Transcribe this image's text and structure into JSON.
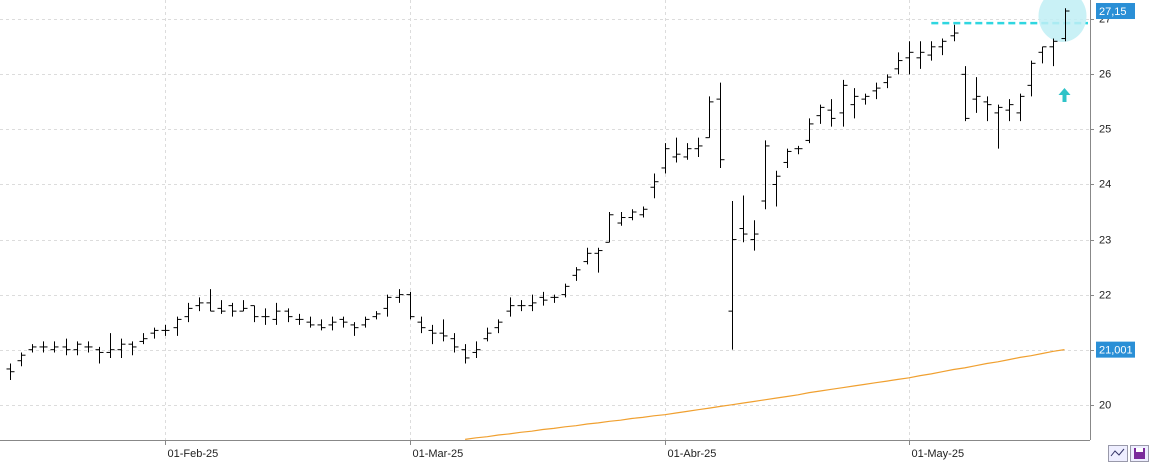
{
  "chart_data": {
    "type": "ohlc",
    "color": "#000000",
    "categories": [
      null,
      null,
      null,
      null,
      null,
      null,
      null,
      null,
      null,
      null,
      null,
      null,
      null,
      null,
      "01-Feb-25",
      null,
      null,
      null,
      null,
      null,
      null,
      null,
      null,
      null,
      null,
      null,
      null,
      null,
      null,
      null,
      null,
      null,
      null,
      null,
      null,
      null,
      "01-Mar-25",
      null,
      null,
      null,
      null,
      null,
      null,
      null,
      null,
      null,
      null,
      null,
      null,
      null,
      null,
      null,
      null,
      null,
      null,
      null,
      null,
      null,
      null,
      "01-Abr-25",
      null,
      null,
      null,
      null,
      null,
      null,
      null,
      null,
      null,
      null,
      null,
      null,
      null,
      null,
      null,
      null,
      null,
      null,
      null,
      null,
      null,
      "01-May-25",
      null,
      null,
      null,
      null,
      null,
      null,
      null,
      null,
      null,
      null,
      null,
      null,
      null,
      null
    ],
    "open": [
      20.65,
      20.8,
      21.0,
      21.05,
      21.0,
      21.05,
      21.0,
      21.05,
      21.0,
      20.95,
      21.0,
      21.1,
      21.15,
      21.3,
      21.35,
      21.4,
      21.6,
      21.8,
      21.85,
      21.75,
      21.8,
      21.7,
      21.8,
      21.6,
      21.55,
      21.7,
      21.55,
      21.5,
      21.45,
      21.45,
      21.55,
      21.45,
      21.45,
      21.6,
      21.75,
      21.95,
      22.0,
      21.5,
      21.35,
      21.3,
      21.2,
      21.0,
      20.95,
      21.2,
      21.4,
      21.7,
      21.8,
      21.8,
      21.95,
      21.95,
      22.0,
      22.35,
      22.6,
      22.75,
      22.95,
      23.3,
      23.4,
      23.45,
      23.95,
      24.3,
      24.5,
      24.5,
      24.65,
      24.85,
      25.55,
      21.7,
      23.2,
      23.0,
      23.7,
      24.0,
      24.4,
      24.65,
      24.8,
      25.25,
      25.35,
      25.3,
      25.45,
      25.55,
      25.7,
      25.85,
      26.1,
      26.3,
      26.3,
      26.35,
      26.5,
      26.7,
      26.0,
      25.55,
      25.5,
      25.3,
      25.35,
      25.3,
      25.8,
      26.4,
      26.5,
      26.65
    ],
    "high": [
      20.75,
      20.95,
      21.1,
      21.15,
      21.15,
      21.2,
      21.15,
      21.15,
      21.05,
      21.3,
      21.2,
      21.15,
      21.3,
      21.4,
      21.45,
      21.6,
      21.85,
      21.95,
      22.1,
      21.9,
      21.85,
      21.9,
      21.8,
      21.75,
      21.85,
      21.75,
      21.65,
      21.6,
      21.55,
      21.6,
      21.6,
      21.5,
      21.6,
      21.7,
      22.0,
      22.1,
      22.05,
      21.6,
      21.45,
      21.55,
      21.3,
      21.1,
      21.15,
      21.4,
      21.55,
      21.95,
      21.9,
      22.0,
      22.05,
      22.0,
      22.2,
      22.5,
      22.85,
      22.85,
      23.5,
      23.5,
      23.55,
      23.6,
      24.2,
      24.75,
      24.85,
      24.75,
      24.85,
      25.6,
      25.85,
      23.7,
      23.8,
      23.35,
      24.8,
      24.25,
      24.65,
      24.7,
      25.2,
      25.45,
      25.55,
      25.9,
      25.75,
      25.65,
      25.85,
      26.0,
      26.4,
      26.6,
      26.6,
      26.6,
      26.65,
      26.9,
      26.15,
      25.95,
      25.6,
      25.45,
      25.55,
      25.65,
      26.25,
      26.5,
      26.65,
      27.2
    ],
    "low": [
      20.45,
      20.7,
      20.95,
      20.95,
      20.95,
      20.9,
      20.9,
      20.95,
      20.75,
      20.85,
      20.85,
      20.9,
      21.1,
      21.2,
      21.25,
      21.25,
      21.5,
      21.7,
      21.7,
      21.65,
      21.6,
      21.7,
      21.5,
      21.45,
      21.45,
      21.5,
      21.45,
      21.4,
      21.35,
      21.35,
      21.4,
      21.25,
      21.4,
      21.55,
      21.6,
      21.85,
      21.55,
      21.3,
      21.1,
      21.15,
      20.95,
      20.75,
      20.85,
      21.15,
      21.3,
      21.6,
      21.7,
      21.7,
      21.8,
      21.85,
      21.95,
      22.25,
      22.55,
      22.4,
      22.95,
      23.25,
      23.35,
      23.4,
      23.75,
      24.2,
      24.4,
      24.45,
      24.5,
      24.85,
      24.3,
      21.0,
      22.95,
      22.8,
      23.55,
      23.6,
      24.3,
      24.55,
      24.75,
      25.1,
      25.05,
      25.05,
      25.2,
      25.45,
      25.55,
      25.75,
      26.0,
      26.0,
      26.1,
      26.25,
      26.35,
      26.6,
      25.15,
      25.3,
      25.15,
      24.65,
      25.15,
      25.15,
      25.6,
      26.2,
      26.15,
      26.6
    ],
    "close": [
      20.6,
      20.9,
      21.05,
      21.05,
      21.05,
      21.0,
      21.1,
      21.05,
      20.95,
      21.0,
      21.1,
      21.05,
      21.2,
      21.35,
      21.35,
      21.55,
      21.75,
      21.85,
      21.7,
      21.7,
      21.7,
      21.75,
      21.6,
      21.6,
      21.7,
      21.6,
      21.55,
      21.45,
      21.4,
      21.5,
      21.5,
      21.4,
      21.55,
      21.65,
      21.95,
      22.0,
      21.6,
      21.4,
      21.3,
      21.25,
      21.05,
      20.85,
      21.0,
      21.3,
      21.5,
      21.8,
      21.8,
      21.85,
      21.9,
      21.95,
      22.15,
      22.45,
      22.75,
      22.8,
      23.45,
      23.4,
      23.5,
      23.55,
      24.05,
      24.65,
      24.55,
      24.65,
      24.7,
      25.5,
      24.45,
      23.0,
      23.1,
      23.1,
      24.7,
      24.15,
      24.6,
      24.65,
      25.1,
      25.4,
      25.2,
      25.8,
      25.6,
      25.6,
      25.75,
      25.95,
      26.25,
      26.4,
      26.4,
      26.5,
      26.6,
      26.75,
      25.2,
      25.6,
      25.45,
      25.4,
      25.45,
      25.6,
      26.2,
      26.5,
      26.6,
      27.15
    ],
    "moving_average": {
      "color": "#f0a030",
      "values": [
        null,
        null,
        null,
        null,
        null,
        null,
        null,
        null,
        null,
        null,
        null,
        null,
        null,
        null,
        null,
        null,
        null,
        null,
        null,
        null,
        null,
        null,
        null,
        null,
        null,
        null,
        null,
        null,
        null,
        null,
        null,
        null,
        null,
        null,
        null,
        null,
        null,
        null,
        null,
        null,
        null,
        19.37,
        19.4,
        19.42,
        19.45,
        19.47,
        19.5,
        19.52,
        19.55,
        19.57,
        19.6,
        19.62,
        19.65,
        19.67,
        19.7,
        19.72,
        19.75,
        19.77,
        19.8,
        19.82,
        19.85,
        19.88,
        19.91,
        19.94,
        19.97,
        20.0,
        20.03,
        20.06,
        20.09,
        20.12,
        20.15,
        20.18,
        20.22,
        20.25,
        20.28,
        20.31,
        20.34,
        20.37,
        20.4,
        20.43,
        20.46,
        20.49,
        20.53,
        20.56,
        20.6,
        20.64,
        20.67,
        20.71,
        20.75,
        20.78,
        20.82,
        20.86,
        20.89,
        20.93,
        20.97,
        21.001
      ]
    },
    "price_tag": {
      "value": 27.15,
      "label": "27,15",
      "color": "#2a8fd6"
    },
    "ma_tag": {
      "value": 21.001,
      "label": "21,001",
      "color": "#2a8fd6"
    },
    "resistance_level": {
      "value": 26.93,
      "color": "#2fd6e0"
    },
    "ylim": [
      19.36,
      27.35
    ],
    "yticks": [
      20,
      21,
      22,
      23,
      24,
      25,
      26,
      27
    ],
    "grid": true
  }
}
